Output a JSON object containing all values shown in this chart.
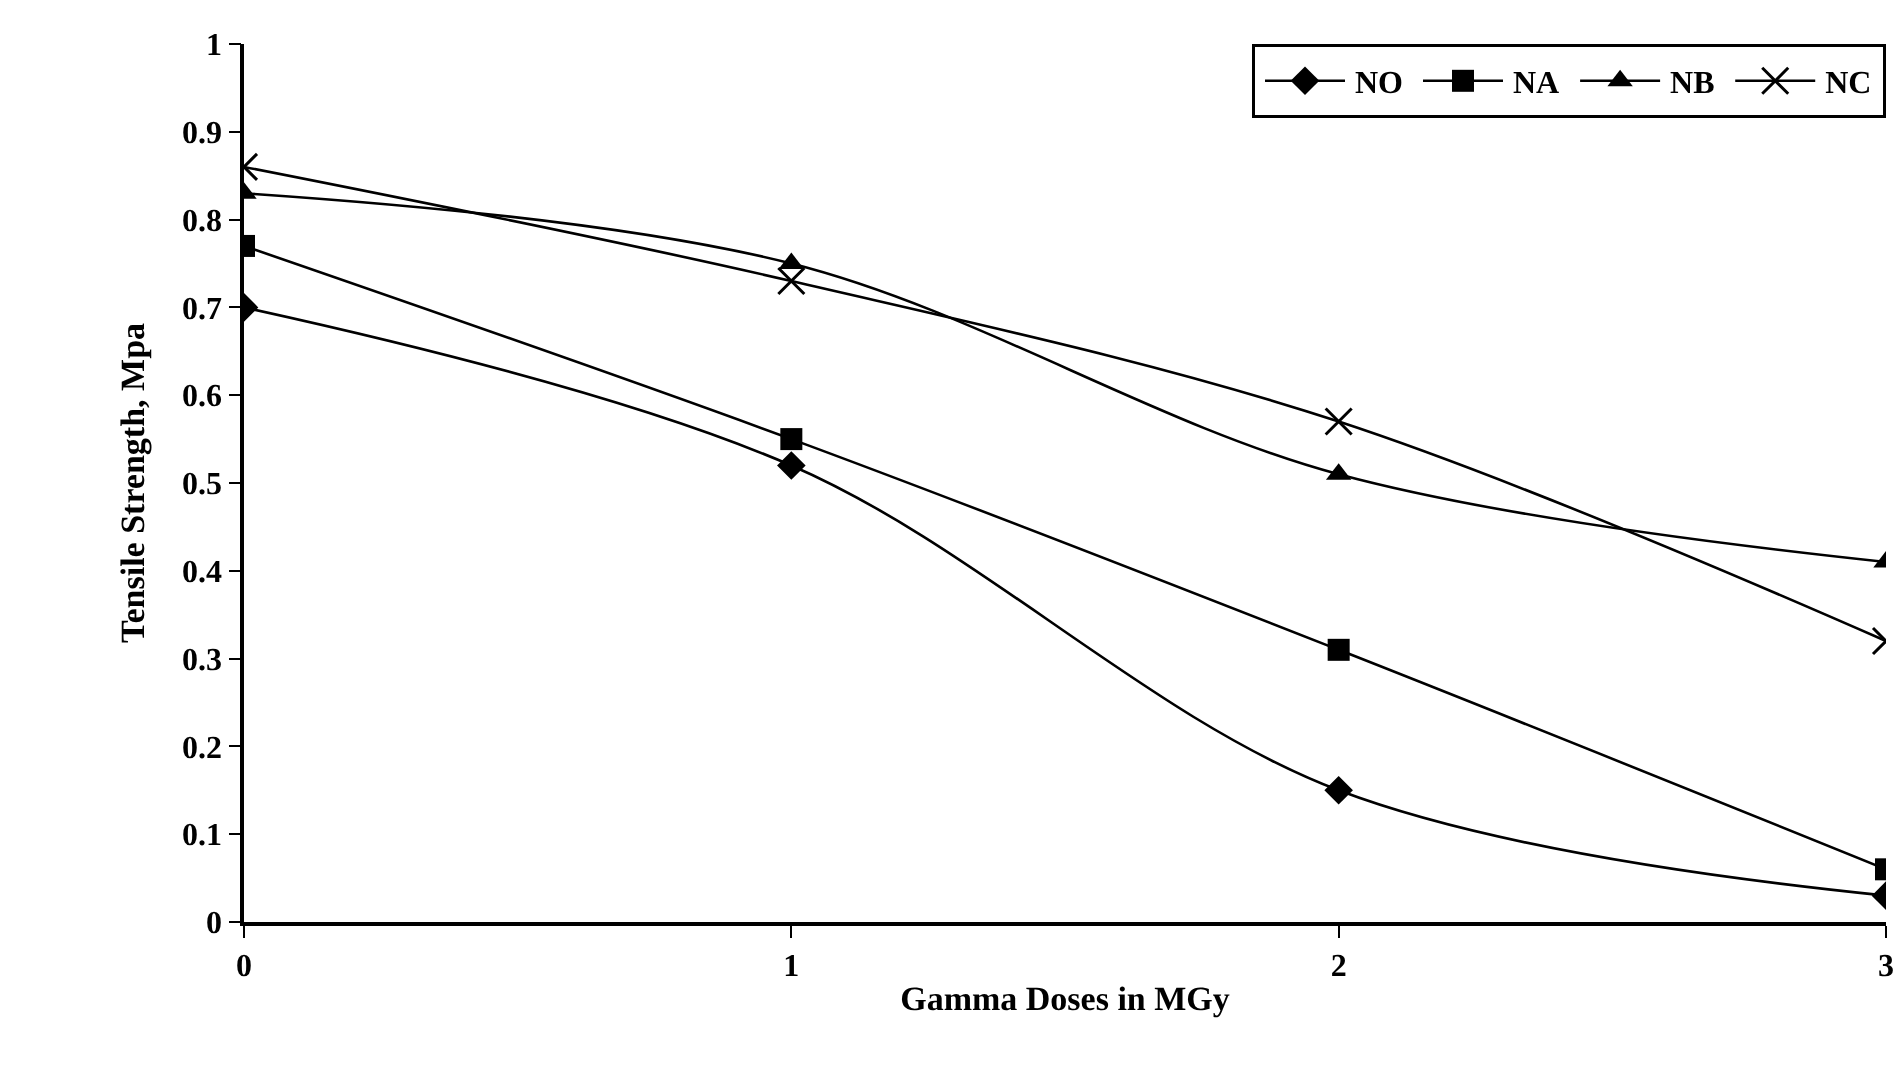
{
  "chart_data": {
    "type": "line",
    "xlabel": "Gamma Doses in MGy",
    "ylabel": "Tensile Strength, Mpa",
    "x": [
      0,
      1,
      2,
      3
    ],
    "xlim": [
      0,
      3
    ],
    "xticks": [
      0,
      1,
      2,
      3
    ],
    "ylim": [
      0,
      1
    ],
    "yticks": [
      0,
      0.1,
      0.2,
      0.3,
      0.4,
      0.5,
      0.6,
      0.7,
      0.8,
      0.9,
      1
    ],
    "grid": false,
    "legend": "top right",
    "line_style": "solid",
    "series": [
      {
        "name": "NO",
        "color": "#000000",
        "marker": "diamond",
        "values": [
          0.7,
          0.52,
          0.15,
          0.03
        ]
      },
      {
        "name": "NA",
        "color": "#000000",
        "marker": "square",
        "values": [
          0.77,
          0.55,
          0.31,
          0.06
        ]
      },
      {
        "name": "NB",
        "color": "#000000",
        "marker": "triangle",
        "values": [
          0.83,
          0.75,
          0.51,
          0.41
        ]
      },
      {
        "name": "NC",
        "color": "#000000",
        "marker": "cross",
        "values": [
          0.86,
          0.73,
          0.57,
          0.32
        ]
      }
    ]
  }
}
